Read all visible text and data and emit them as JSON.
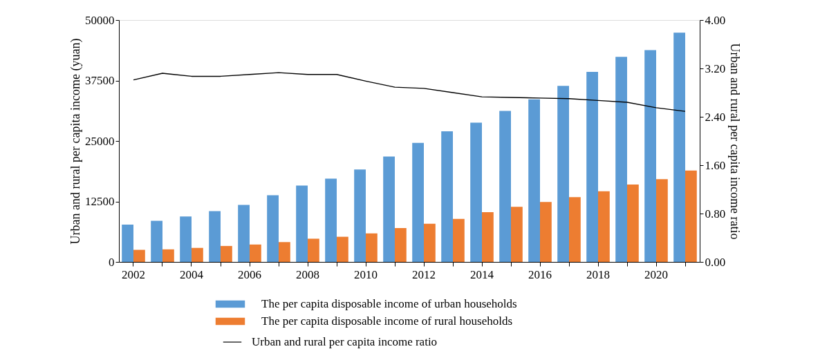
{
  "chart_data": {
    "type": "bar",
    "categories": [
      "2002",
      null,
      "2004",
      null,
      "2006",
      null,
      "2008",
      null,
      "2010",
      null,
      "2012",
      null,
      "2014",
      null,
      "2016",
      null,
      "2018",
      null,
      "2020",
      null
    ],
    "ylabel": "Urban and rural per capita income (yuan)",
    "y2label": "Urban and rural per capita income ratio",
    "series": [
      {
        "name": "The per capita disposable income of urban households",
        "color": "#5b9bd5",
        "values": [
          7700,
          8500,
          9400,
          10500,
          11800,
          13800,
          15800,
          17200,
          19100,
          21800,
          24600,
          27000,
          28800,
          31200,
          33600,
          36400,
          39300,
          42400,
          43800,
          47400
        ]
      },
      {
        "name": "The per capita disposable income of rural households",
        "color": "#ed7d31",
        "values": [
          2500,
          2600,
          2900,
          3300,
          3600,
          4100,
          4800,
          5200,
          5900,
          7000,
          7900,
          8900,
          10300,
          11400,
          12400,
          13400,
          14600,
          16000,
          17100,
          18900
        ]
      },
      {
        "name": "Urban and rural per capita income ratio",
        "type": "line",
        "axis": "y2",
        "color": "#000000",
        "values": [
          3.01,
          3.12,
          3.07,
          3.07,
          3.1,
          3.13,
          3.1,
          3.1,
          2.99,
          2.89,
          2.87,
          2.8,
          2.73,
          2.72,
          2.71,
          2.7,
          2.67,
          2.64,
          2.55,
          2.49
        ]
      }
    ],
    "ylim": [
      0,
      50000
    ],
    "yticks": [
      0,
      12500,
      25000,
      37500,
      50000
    ],
    "y2lim": [
      0,
      4
    ],
    "y2ticks": [
      {
        "value": 0,
        "label": "0.00"
      },
      {
        "value": 0.8,
        "label": "0.80"
      },
      {
        "value": 1.6,
        "label": "1.60"
      },
      {
        "value": 2.4,
        "label": "2.40"
      },
      {
        "value": 3.2,
        "label": "3.20"
      },
      {
        "value": 4,
        "label": "4.00"
      }
    ],
    "grid": false,
    "legend": "bottom",
    "marker": "none",
    "line_style": "solid"
  }
}
